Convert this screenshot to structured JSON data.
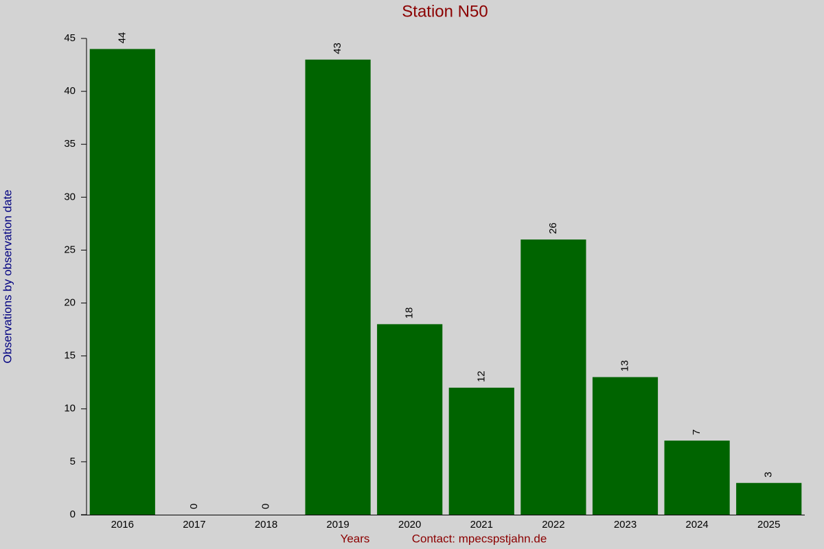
{
  "chart_data": {
    "type": "bar",
    "title": "Station N50",
    "x_label": "Years",
    "y_label": "Observations by observation date",
    "annotation": "Contact: mpecspstjahn.de",
    "categories": [
      "2016",
      "2017",
      "2018",
      "2019",
      "2020",
      "2021",
      "2022",
      "2023",
      "2024",
      "2025"
    ],
    "values": [
      44,
      0,
      0,
      43,
      18,
      12,
      26,
      13,
      7,
      3
    ],
    "color": "#006400",
    "ylim": [
      0,
      45
    ],
    "yticks": [
      0,
      5,
      10,
      15,
      20,
      25,
      30,
      35,
      40,
      45
    ],
    "grid": false
  }
}
